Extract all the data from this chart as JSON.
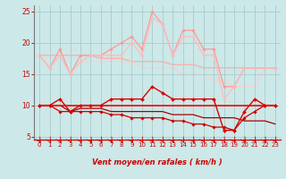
{
  "background_color": "#cce8e8",
  "grid_color": "#aacccc",
  "xlabel": "Vent moyen/en rafales ( km/h )",
  "xlim": [
    -0.5,
    23.5
  ],
  "ylim": [
    4.5,
    26
  ],
  "yticks": [
    5,
    10,
    15,
    20,
    25
  ],
  "xticks": [
    0,
    1,
    2,
    3,
    4,
    5,
    6,
    7,
    8,
    9,
    10,
    11,
    12,
    13,
    14,
    15,
    16,
    17,
    18,
    19,
    20,
    21,
    22,
    23
  ],
  "series": [
    {
      "x": [
        0,
        1,
        2,
        3,
        4,
        5,
        6,
        7,
        8,
        9,
        10,
        11,
        12,
        13,
        14,
        15,
        16,
        17,
        18,
        19,
        20,
        21,
        22,
        23
      ],
      "y": [
        18,
        18,
        18,
        18,
        18,
        18,
        17.5,
        17.5,
        17.5,
        17,
        17,
        17,
        17,
        16.5,
        16.5,
        16.5,
        16,
        16,
        16,
        16,
        16,
        16,
        16,
        16
      ],
      "color": "#ffaaaa",
      "linewidth": 0.9,
      "marker": null,
      "zorder": 1
    },
    {
      "x": [
        0,
        1,
        2,
        3,
        4,
        5,
        6,
        7,
        8,
        9,
        10,
        11,
        12,
        13,
        14,
        15,
        16,
        17,
        18,
        19,
        20,
        21,
        22,
        23
      ],
      "y": [
        18,
        16,
        19,
        15,
        18,
        18,
        18,
        19,
        20,
        21,
        19,
        25,
        23,
        18,
        22,
        22,
        19,
        19,
        13,
        13,
        16,
        16,
        16,
        16
      ],
      "color": "#ff9999",
      "linewidth": 0.9,
      "marker": "D",
      "markersize": 1.8,
      "zorder": 2
    },
    {
      "x": [
        0,
        1,
        2,
        3,
        4,
        5,
        6,
        7,
        8,
        9,
        10,
        11,
        12,
        13,
        14,
        15,
        16,
        17,
        18,
        19,
        20,
        21,
        22,
        23
      ],
      "y": [
        18,
        16,
        18,
        15,
        17,
        18,
        18,
        18,
        18,
        20,
        18,
        24,
        23,
        18,
        21,
        21,
        18,
        18,
        11,
        13,
        16,
        16,
        16,
        16
      ],
      "color": "#ffbbbb",
      "linewidth": 0.9,
      "marker": "D",
      "markersize": 1.6,
      "zorder": 2
    },
    {
      "x": [
        0,
        1,
        2,
        3,
        4,
        5,
        6,
        7,
        8,
        9,
        10,
        11,
        12,
        13,
        14,
        15,
        16,
        17,
        18,
        19,
        20,
        21,
        22,
        23
      ],
      "y": [
        18,
        16,
        18,
        15,
        17,
        17,
        17,
        17,
        17,
        17,
        16,
        16,
        16,
        16,
        15,
        15,
        15,
        14,
        14,
        13,
        13,
        13,
        16,
        16
      ],
      "color": "#ffcccc",
      "linewidth": 0.8,
      "marker": null,
      "zorder": 1
    },
    {
      "x": [
        0,
        1,
        2,
        3,
        4,
        5,
        6,
        7,
        8,
        9,
        10,
        11,
        12,
        13,
        14,
        15,
        16,
        17,
        18,
        19,
        20,
        21,
        22,
        23
      ],
      "y": [
        10,
        10,
        11,
        9,
        10,
        10,
        10,
        11,
        11,
        11,
        11,
        13,
        12,
        11,
        11,
        11,
        11,
        11,
        6,
        6,
        9,
        11,
        10,
        10
      ],
      "color": "#dd0000",
      "linewidth": 1.0,
      "marker": "D",
      "markersize": 2.0,
      "zorder": 4
    },
    {
      "x": [
        0,
        1,
        2,
        3,
        4,
        5,
        6,
        7,
        8,
        9,
        10,
        11,
        12,
        13,
        14,
        15,
        16,
        17,
        18,
        19,
        20,
        21,
        22,
        23
      ],
      "y": [
        10,
        10,
        10,
        10,
        10,
        10,
        10,
        10,
        10,
        10,
        10,
        10,
        10,
        10,
        10,
        10,
        10,
        10,
        10,
        10,
        10,
        10,
        10,
        10
      ],
      "color": "#ff0000",
      "linewidth": 1.2,
      "marker": null,
      "zorder": 3
    },
    {
      "x": [
        0,
        1,
        2,
        3,
        4,
        5,
        6,
        7,
        8,
        9,
        10,
        11,
        12,
        13,
        14,
        15,
        16,
        17,
        18,
        19,
        20,
        21,
        22,
        23
      ],
      "y": [
        10,
        10,
        10,
        9,
        9.5,
        9.5,
        9.5,
        9,
        9,
        9,
        9,
        9,
        9,
        8.5,
        8.5,
        8.5,
        8,
        8,
        8,
        8,
        7.5,
        7.5,
        7.5,
        7
      ],
      "color": "#aa0000",
      "linewidth": 0.9,
      "marker": null,
      "zorder": 2
    },
    {
      "x": [
        0,
        1,
        2,
        3,
        4,
        5,
        6,
        7,
        8,
        9,
        10,
        11,
        12,
        13,
        14,
        15,
        16,
        17,
        18,
        19,
        20,
        21,
        22,
        23
      ],
      "y": [
        10,
        10,
        9,
        9,
        9,
        9,
        9,
        8.5,
        8.5,
        8,
        8,
        8,
        8,
        7.5,
        7.5,
        7,
        7,
        6.5,
        6.5,
        6,
        8,
        9,
        10,
        10
      ],
      "color": "#cc0000",
      "linewidth": 0.9,
      "marker": "D",
      "markersize": 1.8,
      "zorder": 3
    }
  ],
  "arrow_color": "#cc0000",
  "xlabel_color": "#cc0000",
  "tick_color": "#cc0000"
}
